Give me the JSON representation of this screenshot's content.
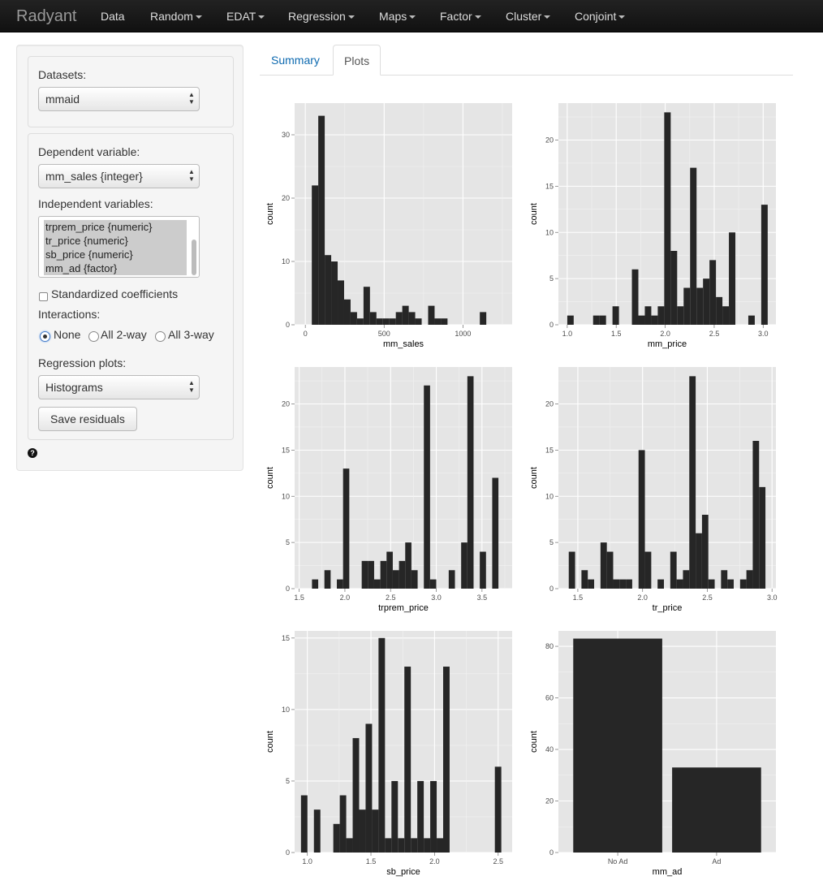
{
  "navbar": {
    "brand": "Radyant",
    "items": [
      {
        "label": "Data",
        "dropdown": false
      },
      {
        "label": "Random",
        "dropdown": true
      },
      {
        "label": "EDAT",
        "dropdown": true
      },
      {
        "label": "Regression",
        "dropdown": true
      },
      {
        "label": "Maps",
        "dropdown": true
      },
      {
        "label": "Factor",
        "dropdown": true
      },
      {
        "label": "Cluster",
        "dropdown": true
      },
      {
        "label": "Conjoint",
        "dropdown": true
      }
    ]
  },
  "sidebar": {
    "datasets_label": "Datasets:",
    "datasets_value": "mmaid",
    "dependent_label": "Dependent variable:",
    "dependent_value": "mm_sales {integer}",
    "independent_label": "Independent variables:",
    "independent_options": [
      "trprem_price {numeric}",
      "tr_price {numeric}",
      "sb_price {numeric}",
      "mm_ad {factor}"
    ],
    "standardized_label": "Standardized coefficients",
    "standardized_checked": false,
    "interactions_label": "Interactions:",
    "interaction_options": [
      {
        "label": "None",
        "checked": true
      },
      {
        "label": "All 2-way",
        "checked": false
      },
      {
        "label": "All 3-way",
        "checked": false
      }
    ],
    "plots_label": "Regression plots:",
    "plots_value": "Histograms",
    "save_button": "Save residuals",
    "help_icon": "question-circle-icon"
  },
  "tabs": [
    {
      "label": "Summary",
      "active": false
    },
    {
      "label": "Plots",
      "active": true
    }
  ],
  "chart_data": [
    {
      "type": "bar",
      "subtype": "histogram",
      "xlabel": "mm_sales",
      "ylabel": "count",
      "xlim": [
        -68,
        1312
      ],
      "ylim": [
        0,
        35
      ],
      "binwidth": 41,
      "bins_start": 41,
      "counts": [
        22,
        33,
        11,
        10,
        7,
        4,
        2,
        1,
        6,
        2,
        1,
        1,
        1,
        2,
        3,
        2,
        1,
        0,
        3,
        1,
        1,
        0,
        0,
        0,
        0,
        0,
        2,
        0,
        0,
        0,
        0,
        0,
        0,
        0,
        0,
        1
      ],
      "xticks": [
        0,
        500,
        1000
      ],
      "yticks": [
        0,
        10,
        20,
        30
      ],
      "grid": true
    },
    {
      "type": "bar",
      "subtype": "histogram",
      "xlabel": "mm_price",
      "ylabel": "count",
      "xlim": [
        0.91,
        3.13
      ],
      "ylim": [
        0,
        24
      ],
      "binwidth": 0.066,
      "bins_start": 1.0,
      "counts": [
        1,
        0,
        0,
        0,
        1,
        1,
        0,
        2,
        0,
        0,
        6,
        1,
        2,
        1,
        2,
        23,
        8,
        2,
        4,
        17,
        4,
        5,
        7,
        3,
        2,
        10,
        0,
        0,
        1,
        0,
        13
      ],
      "xticks": [
        1.0,
        1.5,
        2.0,
        2.5,
        3.0
      ],
      "yticks": [
        0,
        5,
        10,
        15,
        20
      ],
      "grid": true
    },
    {
      "type": "bar",
      "subtype": "histogram",
      "xlabel": "trprem_price",
      "ylabel": "count",
      "xlim": [
        1.45,
        3.83
      ],
      "ylim": [
        0,
        24
      ],
      "binwidth": 0.068,
      "bins_start": 1.64,
      "counts": [
        1,
        0,
        2,
        0,
        1,
        13,
        0,
        0,
        3,
        3,
        1,
        3,
        4,
        2,
        3,
        5,
        2,
        0,
        22,
        1,
        0,
        0,
        2,
        0,
        5,
        23,
        0,
        4,
        0,
        12
      ],
      "xticks": [
        1.5,
        2.0,
        2.5,
        3.0,
        3.5
      ],
      "yticks": [
        0,
        5,
        10,
        15,
        20
      ],
      "grid": true
    },
    {
      "type": "bar",
      "subtype": "histogram",
      "xlabel": "tr_price",
      "ylabel": "count",
      "xlim": [
        1.35,
        3.03
      ],
      "ylim": [
        0,
        24
      ],
      "binwidth": 0.049,
      "bins_start": 1.43,
      "counts": [
        4,
        0,
        2,
        1,
        0,
        5,
        4,
        1,
        1,
        1,
        0,
        15,
        4,
        0,
        1,
        0,
        4,
        1,
        2,
        23,
        6,
        8,
        1,
        0,
        2,
        1,
        0,
        1,
        2,
        16,
        11
      ],
      "xticks": [
        1.5,
        2.0,
        2.5,
        3.0
      ],
      "yticks": [
        0,
        5,
        10,
        15,
        20
      ],
      "grid": true
    },
    {
      "type": "bar",
      "subtype": "histogram",
      "xlabel": "sb_price",
      "ylabel": "count",
      "xlim": [
        0.9,
        2.61
      ],
      "ylim": [
        0,
        15.5
      ],
      "binwidth": 0.0508,
      "bins_start": 0.95,
      "counts": [
        4,
        0,
        3,
        0,
        0,
        2,
        4,
        1,
        8,
        3,
        9,
        3,
        15,
        1,
        5,
        1,
        13,
        1,
        5,
        1,
        5,
        1,
        13,
        0,
        0,
        0,
        0,
        0,
        0,
        0,
        6
      ],
      "xticks": [
        1.0,
        1.5,
        2.0,
        2.5
      ],
      "yticks": [
        0,
        5,
        10,
        15
      ],
      "grid": true
    },
    {
      "type": "bar",
      "xlabel": "mm_ad",
      "ylabel": "count",
      "categories": [
        "No Ad",
        "Ad"
      ],
      "values": [
        83,
        33
      ],
      "ylim": [
        0,
        86
      ],
      "yticks": [
        0,
        20,
        40,
        60,
        80
      ],
      "grid": true
    }
  ]
}
